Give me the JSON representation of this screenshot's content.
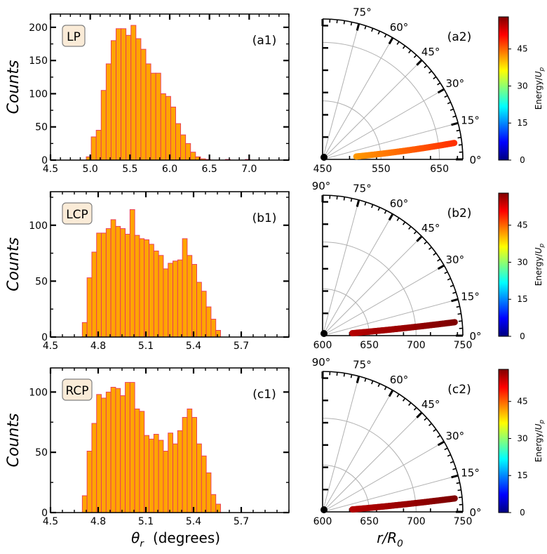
{
  "figure": {
    "xlabel_left": "θ_r (degrees)",
    "xlabel_right": "r/R_0"
  },
  "colorbar": {
    "label": "Energy/U_p",
    "ticks": [
      0,
      15,
      30,
      45
    ],
    "vmin": 0,
    "vmax": 58,
    "colormap": [
      "#00007f",
      "#0000ff",
      "#007fff",
      "#00ffff",
      "#7fff7f",
      "#ffff00",
      "#ff7f00",
      "#ff0000",
      "#7f0000"
    ]
  },
  "chart_data": [
    {
      "id": "a1",
      "type": "bar",
      "panel_label": "(a1)",
      "badge": "LP",
      "ylabel": "Counts",
      "xlim": [
        4.5,
        7.5
      ],
      "ylim": [
        0,
        220
      ],
      "xticks": [
        4.5,
        5.0,
        5.5,
        6.0,
        6.5,
        7.0
      ],
      "xtick_labels": [
        "4.5",
        "5.0",
        "5.5",
        "6.0",
        "6.5",
        "7.0"
      ],
      "yticks": [
        0,
        50,
        100,
        150,
        200
      ],
      "bin_start": 4.95,
      "bin_width": 0.0625,
      "values": [
        5,
        35,
        45,
        105,
        145,
        180,
        198,
        198,
        188,
        203,
        183,
        167,
        145,
        131,
        131,
        100,
        96,
        80,
        55,
        38,
        25,
        12,
        5,
        2,
        1,
        0,
        0,
        0,
        1,
        0,
        0,
        0,
        1
      ]
    },
    {
      "id": "b1",
      "type": "bar",
      "panel_label": "(b1)",
      "badge": "LCP",
      "ylabel": "Counts",
      "xlim": [
        4.5,
        6.0
      ],
      "ylim": [
        0,
        130
      ],
      "xticks": [
        4.5,
        4.8,
        5.1,
        5.4,
        5.7
      ],
      "xtick_labels": [
        "4.5",
        "4.8",
        "5.1",
        "5.4",
        "5.7"
      ],
      "yticks": [
        0,
        50,
        100
      ],
      "bin_start": 4.7,
      "bin_width": 0.03,
      "values": [
        13,
        53,
        76,
        93,
        93,
        97,
        105,
        99,
        97,
        92,
        114,
        91,
        88,
        87,
        83,
        77,
        73,
        61,
        66,
        68,
        69,
        88,
        73,
        65,
        49,
        41,
        27,
        16,
        6
      ]
    },
    {
      "id": "c1",
      "type": "bar",
      "panel_label": "(c1)",
      "badge": "RCP",
      "ylabel": "Counts",
      "xlim": [
        4.5,
        6.0
      ],
      "ylim": [
        0,
        120
      ],
      "xticks": [
        4.5,
        4.8,
        5.1,
        5.4,
        5.7
      ],
      "xtick_labels": [
        "4.5",
        "4.8",
        "5.1",
        "5.4",
        "5.7"
      ],
      "yticks": [
        0,
        50,
        100
      ],
      "bin_start": 4.7,
      "bin_width": 0.03,
      "values": [
        14,
        51,
        74,
        98,
        95,
        100,
        104,
        103,
        97,
        108,
        108,
        86,
        84,
        64,
        61,
        65,
        60,
        51,
        66,
        57,
        68,
        79,
        86,
        79,
        57,
        47,
        33,
        15,
        7
      ]
    },
    {
      "id": "a2",
      "type": "scatter",
      "projection": "polar-quarter",
      "panel_label": "(a2)",
      "rlim": [
        450,
        690
      ],
      "rticks": [
        450,
        550,
        650
      ],
      "angle_labels": [
        "0°",
        "15°",
        "30°",
        "45°",
        "60°",
        "75°"
      ],
      "r_range": [
        508,
        677
      ],
      "theta_range_deg": [
        4.9,
        7.1
      ],
      "energy_range": [
        42,
        48
      ]
    },
    {
      "id": "b2",
      "type": "scatter",
      "projection": "polar-quarter",
      "panel_label": "(b2)",
      "rlim": [
        600,
        750
      ],
      "rticks": [
        600,
        650,
        700,
        750
      ],
      "angle_labels": [
        "0°",
        "15°",
        "30°",
        "45°",
        "60°",
        "75°",
        "90°"
      ],
      "r_range": [
        632,
        742
      ],
      "theta_range_deg": [
        4.7,
        5.8
      ],
      "energy_range": [
        55,
        58
      ]
    },
    {
      "id": "c2",
      "type": "scatter",
      "projection": "polar-quarter",
      "panel_label": "(c2)",
      "rlim": [
        600,
        750
      ],
      "rticks": [
        600,
        650,
        700,
        750
      ],
      "angle_labels": [
        "0°",
        "15°",
        "30°",
        "45°",
        "60°",
        "75°",
        "90°"
      ],
      "r_range": [
        632,
        742
      ],
      "theta_range_deg": [
        4.7,
        5.8
      ],
      "energy_range": [
        55,
        58
      ]
    }
  ]
}
